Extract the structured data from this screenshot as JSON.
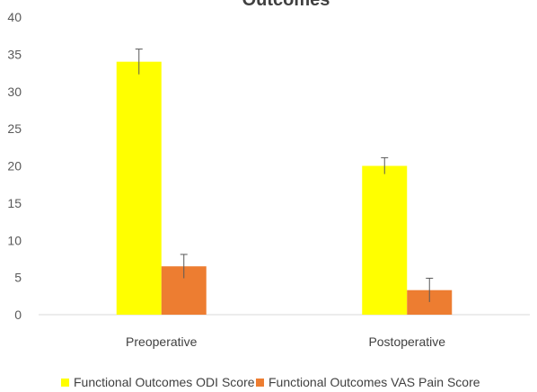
{
  "chart_data": {
    "type": "bar",
    "title": "Outcomes",
    "categories": [
      "Preoperative",
      "Postoperative"
    ],
    "series": [
      {
        "name": "Functional Outcomes ODI Score",
        "color": "#ffff00",
        "values": [
          34,
          20
        ],
        "error": [
          1.7,
          1.1
        ]
      },
      {
        "name": "Functional Outcomes VAS Pain Score",
        "color": "#ed7d31",
        "values": [
          6.5,
          3.3
        ],
        "error": [
          1.6,
          1.6
        ]
      }
    ],
    "ylim": [
      0,
      40
    ],
    "yticks": [
      0,
      5,
      10,
      15,
      20,
      25,
      30,
      35,
      40
    ],
    "grid": false,
    "legend_position": "bottom"
  }
}
